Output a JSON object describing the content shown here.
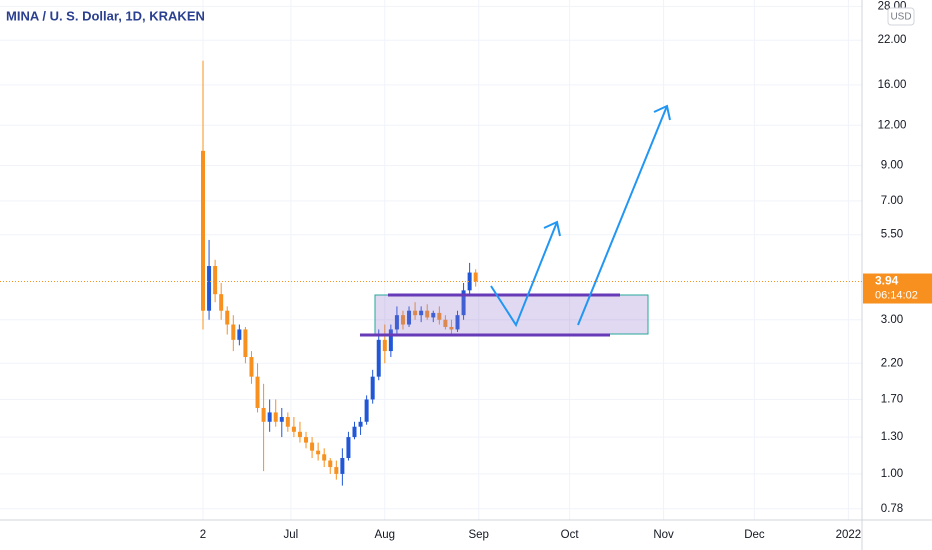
{
  "chart_data": {
    "type": "candlestick",
    "title": "MINA / U. S. Dollar, 1D, KRAKEN",
    "currency": "USD",
    "log_scale": true,
    "up_color": "#2157d6",
    "down_color": "#f7901e",
    "last_price": {
      "value": 3.94,
      "label": "3.94"
    },
    "countdown": "06:14:02",
    "x": [
      0,
      2,
      4,
      6,
      8,
      10,
      12,
      14,
      16,
      18,
      20,
      22,
      24,
      26,
      28,
      30,
      32,
      34,
      36,
      38,
      40,
      42,
      44,
      46,
      48,
      50,
      52,
      54,
      56,
      58,
      60,
      62,
      64,
      66,
      68,
      70,
      72,
      74,
      76,
      78,
      80,
      82,
      84,
      86,
      88,
      90
    ],
    "open": [
      10,
      3.2,
      4.4,
      3.6,
      3.2,
      2.9,
      2.6,
      2.8,
      2.3,
      2.0,
      1.6,
      1.45,
      1.55,
      1.45,
      1.5,
      1.4,
      1.35,
      1.3,
      1.25,
      1.18,
      1.15,
      1.1,
      1.05,
      1.0,
      1.12,
      1.3,
      1.4,
      1.45,
      1.7,
      2.0,
      2.6,
      2.4,
      2.8,
      3.1,
      2.9,
      3.2,
      3.1,
      3.2,
      3.05,
      3.15,
      3.0,
      2.85,
      2.8,
      3.1,
      3.7,
      4.2
    ],
    "high": [
      19,
      5.3,
      4.6,
      3.9,
      3.3,
      3.1,
      2.9,
      2.85,
      2.4,
      2.2,
      1.9,
      1.7,
      1.7,
      1.6,
      1.55,
      1.5,
      1.45,
      1.35,
      1.3,
      1.25,
      1.2,
      1.12,
      1.1,
      1.2,
      1.35,
      1.45,
      1.5,
      1.75,
      2.1,
      2.8,
      2.9,
      2.9,
      3.3,
      3.2,
      3.3,
      3.4,
      3.3,
      3.35,
      3.2,
      3.3,
      3.1,
      3.0,
      3.2,
      3.9,
      4.5,
      4.3
    ],
    "low": [
      2.8,
      3.0,
      3.4,
      3.0,
      2.7,
      2.4,
      2.5,
      2.2,
      1.9,
      1.55,
      1.02,
      1.35,
      1.4,
      1.3,
      1.35,
      1.3,
      1.25,
      1.2,
      1.12,
      1.1,
      1.05,
      1.0,
      0.96,
      0.92,
      1.1,
      1.28,
      1.32,
      1.42,
      1.65,
      1.95,
      2.2,
      2.3,
      2.7,
      2.8,
      2.85,
      3.0,
      2.95,
      3.0,
      2.95,
      2.9,
      2.8,
      2.7,
      2.75,
      3.0,
      3.6,
      3.8
    ],
    "close": [
      3.2,
      4.4,
      3.6,
      3.2,
      2.9,
      2.6,
      2.8,
      2.3,
      2.0,
      1.6,
      1.45,
      1.55,
      1.45,
      1.5,
      1.4,
      1.35,
      1.3,
      1.25,
      1.18,
      1.15,
      1.1,
      1.05,
      1.0,
      1.12,
      1.3,
      1.4,
      1.45,
      1.7,
      2.0,
      2.6,
      2.4,
      2.8,
      3.1,
      2.9,
      3.2,
      3.1,
      3.2,
      3.05,
      3.15,
      3.0,
      2.85,
      2.8,
      3.1,
      3.7,
      4.2,
      3.94
    ],
    "xlim": [
      -67,
      217.5
    ],
    "xticks": [
      {
        "value": 0,
        "label": "2"
      },
      {
        "value": 29,
        "label": "Jul"
      },
      {
        "value": 60,
        "label": "Aug"
      },
      {
        "value": 91,
        "label": "Sep"
      },
      {
        "value": 121,
        "label": "Oct"
      },
      {
        "value": 152,
        "label": "Nov"
      },
      {
        "value": 182,
        "label": "Dec"
      },
      {
        "value": 213,
        "label": "2022"
      }
    ],
    "ylim": [
      0.72,
      29.3
    ],
    "yticks": [
      {
        "value": 0.78,
        "label": "0.78"
      },
      {
        "value": 1,
        "label": "1.00"
      },
      {
        "value": 1.3,
        "label": "1.30"
      },
      {
        "value": 1.7,
        "label": "1.70"
      },
      {
        "value": 2.2,
        "label": "2.20"
      },
      {
        "value": 3,
        "label": "3.00"
      },
      {
        "value": 5.5,
        "label": "5.50"
      },
      {
        "value": 7,
        "label": "7.00"
      },
      {
        "value": 9,
        "label": "9.00"
      },
      {
        "value": 12,
        "label": "12.00"
      },
      {
        "value": 16,
        "label": "16.00"
      },
      {
        "value": 22,
        "label": "22.00"
      },
      {
        "value": 28,
        "label": "28.00"
      }
    ]
  }
}
